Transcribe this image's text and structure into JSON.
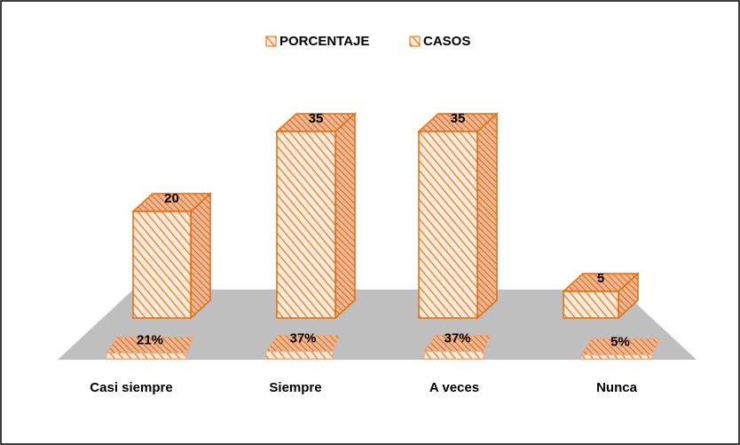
{
  "chart_data": {
    "type": "bar3d",
    "categories": [
      "Casi siempre",
      "Siempre",
      "A veces",
      "Nunca"
    ],
    "series": [
      {
        "name": "PORCENTAJE",
        "color": "#e46c0a",
        "values": [
          21,
          37,
          37,
          5
        ],
        "value_labels": [
          "21%",
          "37%",
          "37%",
          "5%"
        ]
      },
      {
        "name": "CASOS",
        "color": "#e46c0a",
        "values": [
          20,
          35,
          35,
          5
        ]
      }
    ],
    "legend": "top"
  }
}
